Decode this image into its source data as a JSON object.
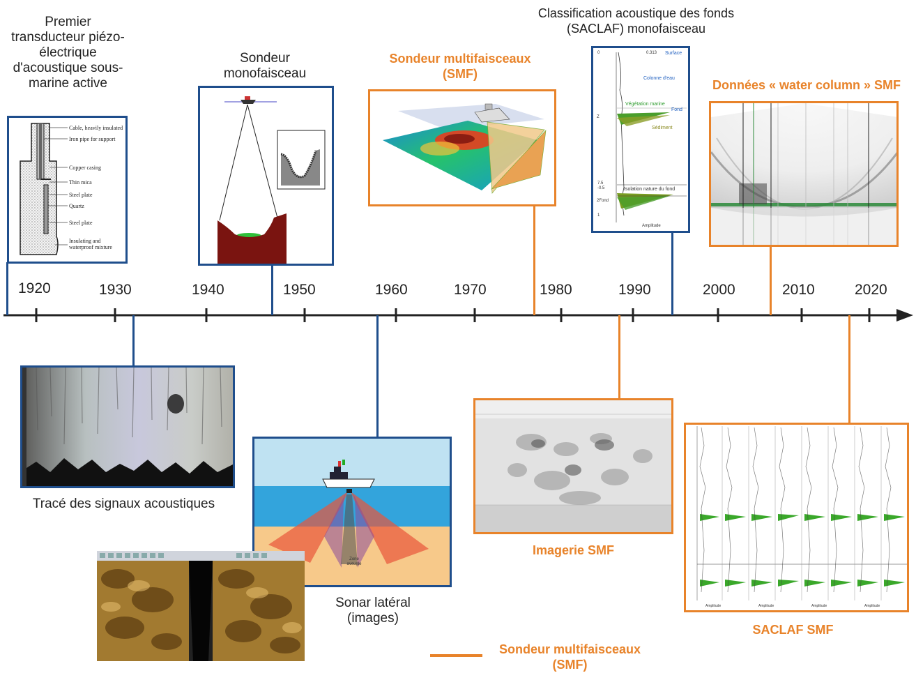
{
  "timeline": {
    "years": [
      "1920",
      "1930",
      "1940",
      "1950",
      "1960",
      "1970",
      "1980",
      "1990",
      "2000",
      "2010",
      "2020"
    ]
  },
  "labels": {
    "transducer": "Premier transducteur piézo-électrique d'acoustique sous-marine active",
    "monobeam": "Sondeur monofaisceau",
    "smf_top": "Sondeur multifaisceaux (SMF)",
    "saclaf_mono": "Classification acoustique des fonds (SACLAF) monofaisceau",
    "water_column": "Données « water column » SMF",
    "trace": "Tracé des signaux acoustiques",
    "sonar_lateral": "Sonar latéral (images)",
    "imagerie": "Imagerie SMF",
    "saclaf_smf": "SACLAF SMF",
    "legend": "Sondeur multifaisceaux (SMF)"
  },
  "transducer_parts": [
    "Cable, heavily insulated",
    "Iron pipe for support",
    "Copper casing",
    "Thin mica",
    "Steel plate",
    "Quartz",
    "Steel plate",
    "Insulating and waterproof mixture"
  ],
  "saclaf_mono_panel": {
    "tags": [
      "Surface",
      "Colonne d'eau",
      "Végétation marine",
      "Fond",
      "Sédiment",
      "Isolation nature du fond",
      "Amplitude"
    ],
    "axis": [
      "0",
      "Z",
      "7.5",
      "-0.5",
      "2Fond",
      "1",
      "0.313"
    ]
  },
  "sonar_zone": "Zone aveugle",
  "saclaf_smf_panel": {
    "amplitude": "Amplitude"
  },
  "colors": {
    "blue": "#1f4e8c",
    "orange": "#e8832a"
  }
}
